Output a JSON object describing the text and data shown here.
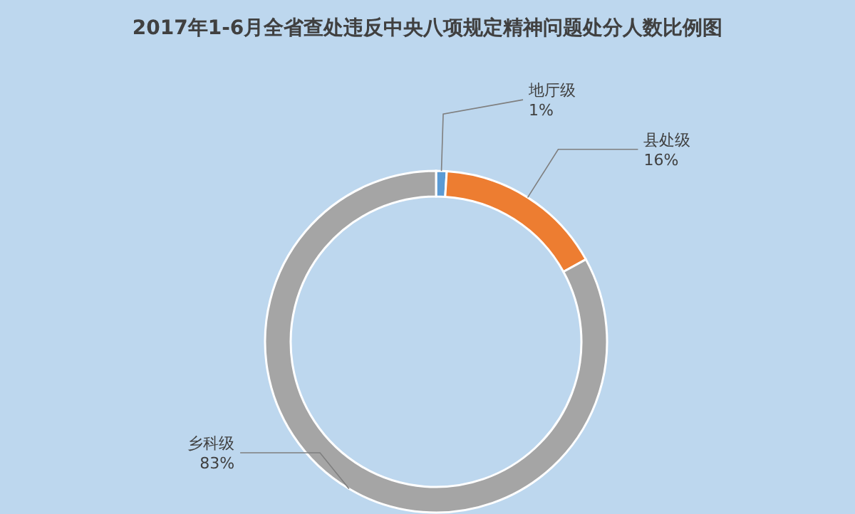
{
  "chart_data": {
    "type": "donut",
    "title": "2017年1-6月全省查处违反中央八项规定精神问题处分人数比例图",
    "categories": [
      "地厅级",
      "县处级",
      "乡科级"
    ],
    "values": [
      1,
      16,
      83
    ],
    "colors": [
      "#5b9bd5",
      "#ed7d31",
      "#a5a5a5"
    ],
    "value_labels": [
      "1%",
      "16%",
      "83%"
    ]
  }
}
